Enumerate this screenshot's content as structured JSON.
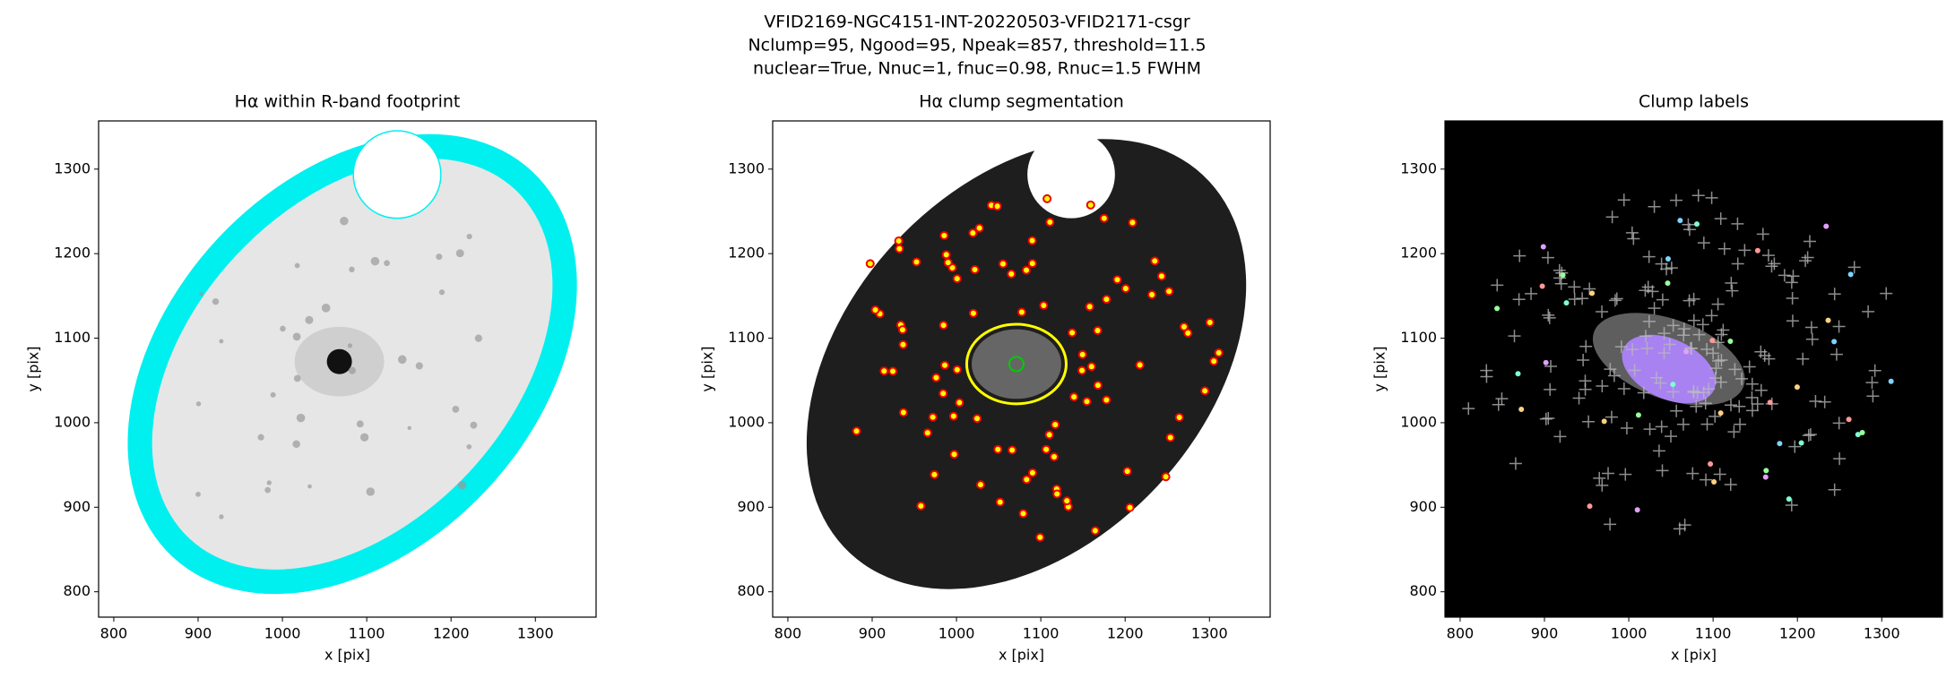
{
  "suptitle": [
    "VFID2169-NGC4151-INT-20220503-VFID2171-csgr",
    "Nclump=95, Ngood=95, Npeak=857, threshold=11.5",
    "nuclear=True, Nnuc=1, fnuc=0.98, Rnuc=1.5 FWHM"
  ],
  "chart_data": [
    {
      "type": "image",
      "title": "Hα within R-band footprint",
      "xlabel": "x [pix]",
      "ylabel": "y [pix]",
      "xlim": [
        782,
        1372
      ],
      "ylim": [
        770,
        1357
      ],
      "xticks": [
        800,
        900,
        1000,
        1100,
        1200,
        1300
      ],
      "yticks": [
        800,
        900,
        1000,
        1100,
        1200,
        1300
      ]
    },
    {
      "type": "image",
      "title": "Hα clump segmentation",
      "xlabel": "x [pix]",
      "ylabel": "y [pix]",
      "xlim": [
        782,
        1372
      ],
      "ylim": [
        770,
        1357
      ],
      "xticks": [
        800,
        900,
        1000,
        1100,
        1200,
        1300
      ],
      "yticks": [
        800,
        900,
        1000,
        1100,
        1200,
        1300
      ]
    },
    {
      "type": "image",
      "title": "Clump labels",
      "xlabel": "x [pix]",
      "ylabel": "y [pix]",
      "xlim": [
        782,
        1372
      ],
      "ylim": [
        770,
        1357
      ],
      "xticks": [
        800,
        900,
        1000,
        1100,
        1200,
        1300
      ],
      "yticks": [
        800,
        900,
        1000,
        1100,
        1200,
        1300
      ]
    }
  ]
}
